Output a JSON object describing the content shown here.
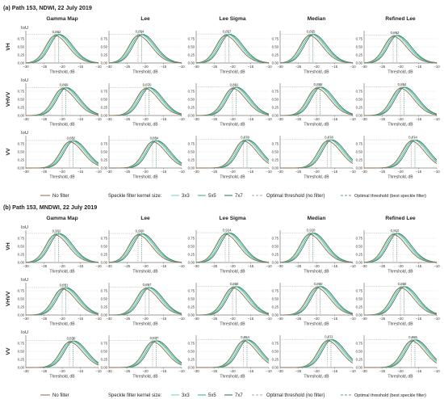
{
  "figure": {
    "thresholds": [
      "−30",
      "−25",
      "−20",
      "−15",
      "−10"
    ],
    "iou_ticks": [
      "0.00",
      "0.25",
      "0.50",
      "0.75"
    ],
    "xlabel": "Threshold, dB",
    "ylabel": "IoU",
    "colors": {
      "no_filter": "#8b6a4a",
      "k3x3": "#6fd0b0",
      "k5x5": "#3aa88a",
      "k7x7": "#1f6e5a",
      "opt_nofilter": "#a08a70",
      "opt_best": "#2a7c66"
    }
  },
  "panels": [
    {
      "title": "(a) Path 153, NDWI, 22 July 2019",
      "filters": [
        "Gamma Map",
        "Lee",
        "Lee Sigma",
        "Median",
        "Refined Lee"
      ],
      "pols": [
        "VH",
        "VHVV",
        "VV"
      ],
      "legend": {
        "no_filter": "No filter",
        "kernel_label": "Speckle filter kernel size:",
        "k3": "3x3",
        "k5": "5x5",
        "k7": "7x7",
        "opt_nofilter": "Optimal threshold (no filter)",
        "opt_best": "Optimal threshold (best speckle filter)"
      }
    },
    {
      "title": "(b) Path 153, MNDWI, 22 July 2019",
      "filters": [
        "Gamma Map",
        "Lee",
        "Lee Sigma",
        "Median",
        "Refined Lee"
      ],
      "pols": [
        "VH",
        "VHVV",
        "VV"
      ],
      "legend": {
        "no_filter": "No filter",
        "kernel_label": "Speckle filter kernel size:",
        "k3": "3x3",
        "k5": "5x5",
        "k7": "7x7",
        "opt_nofilter": "Optimal threshold (no filter)",
        "opt_best": "Optimal threshold (best speckle filter)"
      }
    }
  ],
  "chart_data": [
    {
      "type": "line",
      "panel": "(a) Path 153, NDWI, 22 July 2019",
      "xlabel": "Threshold, dB",
      "ylabel": "IoU",
      "xlim": [
        -30,
        -10
      ],
      "ylim": [
        0,
        1
      ],
      "x_ticks": [
        -30,
        -25,
        -20,
        -15,
        -10
      ],
      "y_ticks": [
        0,
        0.25,
        0.5,
        0.75
      ],
      "subplots": [
        {
          "filter": "Gamma Map",
          "pol": "VH",
          "peak_x": -22.0,
          "peak_label": "0.892"
        },
        {
          "filter": "Lee",
          "pol": "VH",
          "peak_x": -22.0,
          "peak_label": "0.894"
        },
        {
          "filter": "Lee Sigma",
          "pol": "VH",
          "peak_x": -22.0,
          "peak_label": "0.897"
        },
        {
          "filter": "Median",
          "pol": "VH",
          "peak_x": -22.0,
          "peak_label": "0.895"
        },
        {
          "filter": "Refined Lee",
          "pol": "VH",
          "peak_x": -22.0,
          "peak_label": "0.863"
        },
        {
          "filter": "Gamma Map",
          "pol": "VHVV",
          "peak_x": -20.0,
          "peak_label": "0.869"
        },
        {
          "filter": "Lee",
          "pol": "VHVV",
          "peak_x": -20.0,
          "peak_label": "0.870"
        },
        {
          "filter": "Lee Sigma",
          "pol": "VHVV",
          "peak_x": -20.0,
          "peak_label": "0.881"
        },
        {
          "filter": "Median",
          "pol": "VHVV",
          "peak_x": -20.0,
          "peak_label": "0.886"
        },
        {
          "filter": "Refined Lee",
          "pol": "VHVV",
          "peak_x": -20.0,
          "peak_label": "0.884"
        },
        {
          "filter": "Gamma Map",
          "pol": "VV",
          "peak_x": -18.0,
          "peak_label": "0.852"
        },
        {
          "filter": "Lee",
          "pol": "VV",
          "peak_x": -18.0,
          "peak_label": "0.854"
        },
        {
          "filter": "Lee Sigma",
          "pol": "VV",
          "peak_x": -17.0,
          "peak_label": "0.879"
        },
        {
          "filter": "Median",
          "pol": "VV",
          "peak_x": -17.0,
          "peak_label": "0.878"
        },
        {
          "filter": "Refined Lee",
          "pol": "VV",
          "peak_x": -17.0,
          "peak_label": "0.874"
        }
      ]
    },
    {
      "type": "line",
      "panel": "(b) Path 153, MNDWI, 22 July 2019",
      "xlabel": "Threshold, dB",
      "ylabel": "IoU",
      "xlim": [
        -30,
        -10
      ],
      "ylim": [
        0,
        1
      ],
      "x_ticks": [
        -30,
        -25,
        -20,
        -15,
        -10
      ],
      "y_ticks": [
        0,
        0.25,
        0.5,
        0.75
      ],
      "subplots": [
        {
          "filter": "Gamma Map",
          "pol": "VH",
          "peak_x": -22.0,
          "peak_label": "0.902"
        },
        {
          "filter": "Lee",
          "pol": "VH",
          "peak_x": -22.0,
          "peak_label": "0.900"
        },
        {
          "filter": "Lee Sigma",
          "pol": "VH",
          "peak_x": -22.0,
          "peak_label": "0.924"
        },
        {
          "filter": "Median",
          "pol": "VH",
          "peak_x": -22.0,
          "peak_label": "0.920"
        },
        {
          "filter": "Refined Lee",
          "pol": "VH",
          "peak_x": -22.0,
          "peak_label": "0.910"
        },
        {
          "filter": "Gamma Map",
          "pol": "VHVV",
          "peak_x": -20.0,
          "peak_label": "0.851"
        },
        {
          "filter": "Lee",
          "pol": "VHVV",
          "peak_x": -20.0,
          "peak_label": "0.857"
        },
        {
          "filter": "Lee Sigma",
          "pol": "VHVV",
          "peak_x": -20.0,
          "peak_label": "0.886"
        },
        {
          "filter": "Median",
          "pol": "VHVV",
          "peak_x": -20.0,
          "peak_label": "0.890"
        },
        {
          "filter": "Refined Lee",
          "pol": "VHVV",
          "peak_x": -20.0,
          "peak_label": "0.886"
        },
        {
          "filter": "Gamma Map",
          "pol": "VV",
          "peak_x": -18.0,
          "peak_label": "0.830"
        },
        {
          "filter": "Lee",
          "pol": "VV",
          "peak_x": -18.0,
          "peak_label": "0.837"
        },
        {
          "filter": "Lee Sigma",
          "pol": "VV",
          "peak_x": -17.0,
          "peak_label": "0.864"
        },
        {
          "filter": "Median",
          "pol": "VV",
          "peak_x": -17.0,
          "peak_label": "0.871"
        },
        {
          "filter": "Refined Lee",
          "pol": "VV",
          "peak_x": -17.0,
          "peak_label": "0.865"
        }
      ]
    }
  ]
}
